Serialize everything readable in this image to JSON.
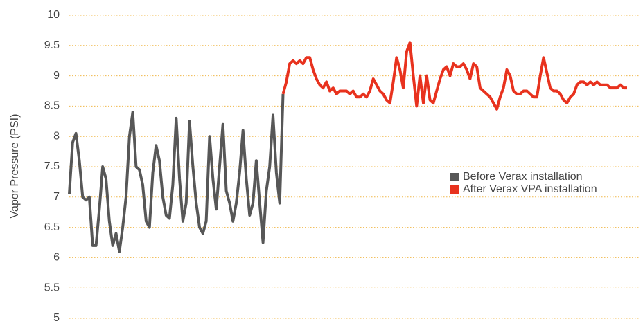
{
  "chart_data": {
    "type": "line",
    "y_label": "Vapor Pressure (PSI)",
    "ylim": [
      5,
      10
    ],
    "yticks": [
      5,
      5.5,
      6,
      6.5,
      7,
      7.5,
      8,
      8.5,
      9,
      9.5,
      10
    ],
    "grid": true,
    "legend": "right",
    "series": [
      {
        "name": "Before Verax installation",
        "color": "#575757",
        "values": [
          7.05,
          7.9,
          8.05,
          7.6,
          7.0,
          6.95,
          7.0,
          6.2,
          6.2,
          6.8,
          7.5,
          7.3,
          6.6,
          6.2,
          6.4,
          6.1,
          6.5,
          7.0,
          8.0,
          8.4,
          7.5,
          7.45,
          7.2,
          6.6,
          6.5,
          7.4,
          7.85,
          7.6,
          7.0,
          6.7,
          6.65,
          7.2,
          8.3,
          7.3,
          6.6,
          6.9,
          8.25,
          7.5,
          6.9,
          6.5,
          6.4,
          6.6,
          8.0,
          7.3,
          6.8,
          7.5,
          8.2,
          7.1,
          6.9,
          6.6,
          6.9,
          7.4,
          8.1,
          7.3,
          6.7,
          6.9,
          7.6,
          6.9,
          6.25,
          7.1,
          7.5,
          8.35,
          7.4,
          6.9,
          8.7
        ]
      },
      {
        "name": "After Verax VPA installation",
        "color": "#e8321e",
        "values": [
          8.7,
          8.9,
          9.2,
          9.25,
          9.2,
          9.25,
          9.2,
          9.3,
          9.3,
          9.1,
          8.95,
          8.85,
          8.8,
          8.9,
          8.75,
          8.8,
          8.7,
          8.75,
          8.75,
          8.75,
          8.7,
          8.75,
          8.65,
          8.65,
          8.7,
          8.65,
          8.75,
          8.95,
          8.85,
          8.75,
          8.7,
          8.6,
          8.55,
          8.9,
          9.3,
          9.1,
          8.8,
          9.4,
          9.55,
          9.0,
          8.5,
          9.0,
          8.55,
          9.0,
          8.6,
          8.55,
          8.75,
          8.95,
          9.1,
          9.15,
          9.0,
          9.2,
          9.15,
          9.15,
          9.2,
          9.1,
          8.95,
          9.2,
          9.15,
          8.8,
          8.75,
          8.7,
          8.65,
          8.55,
          8.45,
          8.65,
          8.8,
          9.1,
          9.0,
          8.75,
          8.7,
          8.7,
          8.75,
          8.75,
          8.7,
          8.65,
          8.65,
          9.0,
          9.3,
          9.05,
          8.8,
          8.75,
          8.75,
          8.7,
          8.6,
          8.55,
          8.65,
          8.7,
          8.85,
          8.9,
          8.9,
          8.85,
          8.9,
          8.85,
          8.9,
          8.85,
          8.85,
          8.85,
          8.8,
          8.8,
          8.8,
          8.85,
          8.8,
          8.8
        ]
      }
    ]
  }
}
